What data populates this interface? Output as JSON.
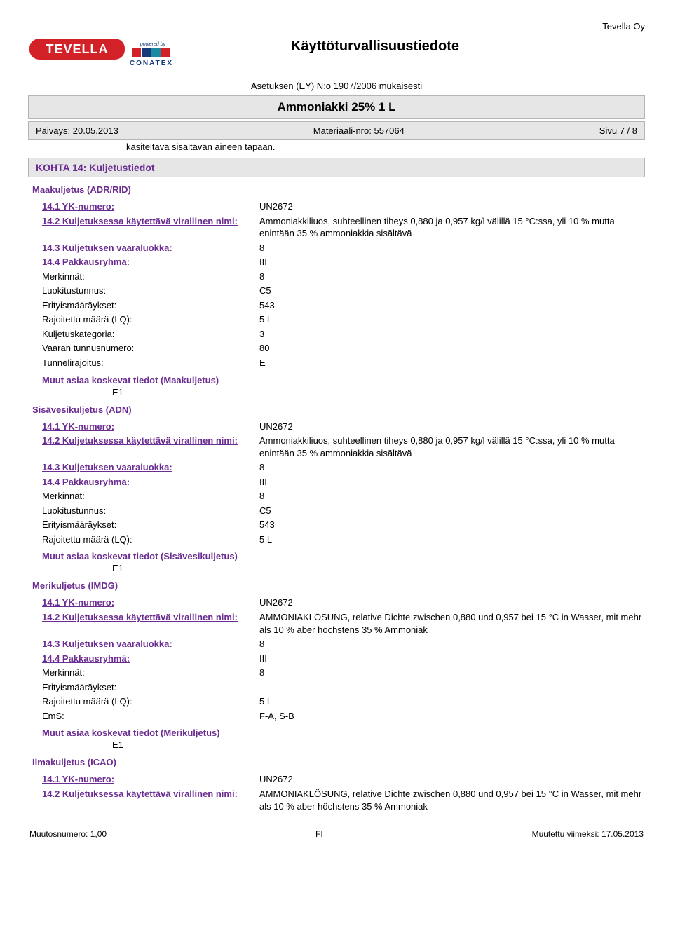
{
  "company": "Tevella Oy",
  "doc_title": "Käyttöturvallisuustiedote",
  "regulation": "Asetuksen (EY) N:o 1907/2006 mukaisesti",
  "product_name": "Ammoniakki 25% 1 L",
  "meta": {
    "date_label": "Päiväys: 20.05.2013",
    "material_label": "Materiaali-nro: 557064",
    "page_label": "Sivu 7 / 8"
  },
  "indent_line": "käsiteltävä sisältävän aineen tapaan.",
  "section14_title": "KOHTA 14: Kuljetustiedot",
  "adr": {
    "heading": "Maakuljetus (ADR/RID)",
    "rows": [
      {
        "label": "14.1 YK-numero:",
        "value": "UN2672",
        "decor": true
      },
      {
        "label": "14.2 Kuljetuksessa käytettävä virallinen nimi:",
        "value": "Ammoniakkiliuos, suhteellinen tiheys 0,880 ja 0,957 kg/l välillä 15 °C:ssa, yli 10 % mutta enintään 35 % ammoniakkia sisältävä",
        "decor": true
      },
      {
        "label": "14.3 Kuljetuksen vaaraluokka:",
        "value": "8",
        "decor": true
      },
      {
        "label": "14.4 Pakkausryhmä:",
        "value": "III",
        "decor": true
      },
      {
        "label": "Merkinnät:",
        "value": "8",
        "decor": false
      },
      {
        "label": "Luokitustunnus:",
        "value": "C5",
        "decor": false
      },
      {
        "label": "Erityismääräykset:",
        "value": "543",
        "decor": false
      },
      {
        "label": "Rajoitettu määrä (LQ):",
        "value": "5 L",
        "decor": false
      },
      {
        "label": "Kuljetuskategoria:",
        "value": "3",
        "decor": false
      },
      {
        "label": "Vaaran tunnusnumero:",
        "value": "80",
        "decor": false
      },
      {
        "label": "Tunnelirajoitus:",
        "value": "E",
        "decor": false
      }
    ],
    "other_label": "Muut asiaa koskevat tiedot (Maakuljetus)",
    "other_value": "E1"
  },
  "adn": {
    "heading": "Sisävesikuljetus (ADN)",
    "rows": [
      {
        "label": "14.1 YK-numero:",
        "value": "UN2672",
        "decor": true
      },
      {
        "label": "14.2 Kuljetuksessa käytettävä virallinen nimi:",
        "value": "Ammoniakkiliuos, suhteellinen tiheys 0,880 ja 0,957 kg/l välillä 15 °C:ssa, yli 10 % mutta enintään 35 % ammoniakkia sisältävä",
        "decor": true
      },
      {
        "label": "14.3 Kuljetuksen vaaraluokka:",
        "value": "8",
        "decor": true
      },
      {
        "label": "14.4 Pakkausryhmä:",
        "value": "III",
        "decor": true
      },
      {
        "label": "Merkinnät:",
        "value": "8",
        "decor": false
      },
      {
        "label": "Luokitustunnus:",
        "value": "C5",
        "decor": false
      },
      {
        "label": "Erityismääräykset:",
        "value": "543",
        "decor": false
      },
      {
        "label": "Rajoitettu määrä (LQ):",
        "value": "5 L",
        "decor": false
      }
    ],
    "other_label": "Muut asiaa koskevat tiedot (Sisävesikuljetus)",
    "other_value": "E1"
  },
  "imdg": {
    "heading": "Merikuljetus (IMDG)",
    "rows": [
      {
        "label": "14.1 YK-numero:",
        "value": "UN2672",
        "decor": true
      },
      {
        "label": "14.2 Kuljetuksessa käytettävä virallinen nimi:",
        "value": "AMMONIAKLÖSUNG, relative Dichte zwischen 0,880 und 0,957 bei 15 °C in Wasser, mit mehr als 10 % aber höchstens 35 % Ammoniak",
        "decor": true
      },
      {
        "label": "14.3 Kuljetuksen vaaraluokka:",
        "value": "8",
        "decor": true
      },
      {
        "label": "14.4 Pakkausryhmä:",
        "value": "III",
        "decor": true
      },
      {
        "label": "Merkinnät:",
        "value": "8",
        "decor": false
      },
      {
        "label": "Erityismääräykset:",
        "value": "-",
        "decor": false
      },
      {
        "label": "Rajoitettu määrä (LQ):",
        "value": "5 L",
        "decor": false
      },
      {
        "label": "EmS:",
        "value": "F-A, S-B",
        "decor": false
      }
    ],
    "other_label": "Muut asiaa koskevat tiedot (Merikuljetus)",
    "other_value": "E1"
  },
  "icao": {
    "heading": "Ilmakuljetus (ICAO)",
    "rows": [
      {
        "label": "14.1 YK-numero:",
        "value": "UN2672",
        "decor": true
      },
      {
        "label": "14.2 Kuljetuksessa käytettävä virallinen nimi:",
        "value": "AMMONIAKLÖSUNG, relative Dichte zwischen 0,880 und 0,957 bei 15 °C in Wasser, mit mehr als 10 % aber höchstens 35 % Ammoniak",
        "decor": true
      }
    ]
  },
  "footer": {
    "left": "Muutosnumero: 1,00",
    "center": "FI",
    "right": "Muutettu viimeksi: 17.05.2013"
  },
  "colors": {
    "purple": "#6b2c91",
    "bar_bg": "#e6e6e6",
    "bar_border": "#b5b5b5",
    "logo_red": "#d22228",
    "logo_navy": "#163a7a",
    "logo_teal": "#1a8aa0"
  },
  "logo": {
    "brand": "TEVELLA",
    "powered": "powered by",
    "sub": "CONATEX"
  }
}
